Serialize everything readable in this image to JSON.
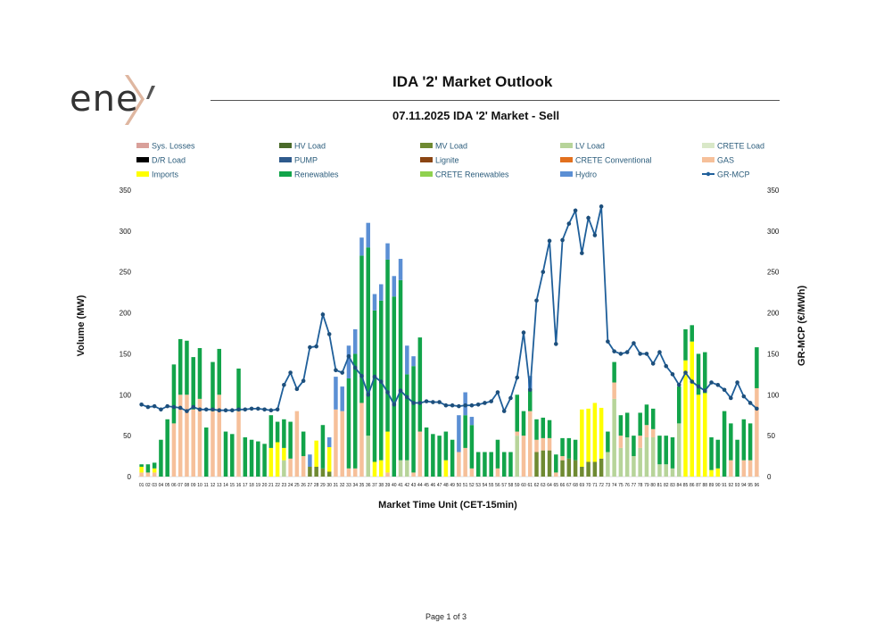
{
  "header": {
    "logo_text": "ene",
    "title": "IDA '2' Market Outlook",
    "subtitle": "07.11.2025  IDA '2' Market - Sell"
  },
  "footer": {
    "page": "Page 1 of 3"
  },
  "chart_data": {
    "type": "bar",
    "stacked": true,
    "xlabel": "Market Time Unit (CET-15min)",
    "ylabel": "Volume (MW)",
    "y2label": "GR-MCP (€/MWh)",
    "ylim": [
      0,
      350
    ],
    "y2lim": [
      0,
      350
    ],
    "yticks": [
      0,
      50,
      100,
      150,
      200,
      250,
      300,
      350
    ],
    "categories": [
      "01",
      "02",
      "03",
      "04",
      "05",
      "06",
      "07",
      "08",
      "09",
      "10",
      "11",
      "12",
      "13",
      "14",
      "15",
      "16",
      "17",
      "18",
      "19",
      "20",
      "21",
      "22",
      "23",
      "24",
      "25",
      "26",
      "27",
      "28",
      "29",
      "30",
      "31",
      "32",
      "33",
      "34",
      "35",
      "36",
      "37",
      "38",
      "39",
      "40",
      "41",
      "42",
      "43",
      "44",
      "45",
      "46",
      "47",
      "48",
      "49",
      "50",
      "51",
      "52",
      "53",
      "54",
      "55",
      "56",
      "57",
      "58",
      "59",
      "60",
      "61",
      "62",
      "63",
      "64",
      "65",
      "66",
      "67",
      "68",
      "69",
      "70",
      "71",
      "72",
      "73",
      "74",
      "75",
      "76",
      "77",
      "78",
      "79",
      "80",
      "81",
      "82",
      "83",
      "84",
      "85",
      "86",
      "87",
      "88",
      "89",
      "90",
      "91",
      "92",
      "93",
      "94",
      "95",
      "96"
    ],
    "legend": [
      {
        "name": "Sys. Losses",
        "color": "#d9a09a",
        "kind": "bar"
      },
      {
        "name": "HV Load",
        "color": "#4a6a2a",
        "kind": "bar"
      },
      {
        "name": "MV Load",
        "color": "#6f8a32",
        "kind": "bar"
      },
      {
        "name": "LV Load",
        "color": "#b7d49a",
        "kind": "bar"
      },
      {
        "name": "CRETE Load",
        "color": "#d9e8c8",
        "kind": "bar"
      },
      {
        "name": "D/R Load",
        "color": "#000000",
        "kind": "bar"
      },
      {
        "name": "PUMP",
        "color": "#2e5a8c",
        "kind": "bar"
      },
      {
        "name": "Lignite",
        "color": "#8b4513",
        "kind": "bar"
      },
      {
        "name": "CRETE Conventional",
        "color": "#e2701e",
        "kind": "bar"
      },
      {
        "name": "GAS",
        "color": "#f6c09a",
        "kind": "bar"
      },
      {
        "name": "Imports",
        "color": "#ffff00",
        "kind": "bar"
      },
      {
        "name": "Renewables",
        "color": "#12a44a",
        "kind": "bar"
      },
      {
        "name": "CRETE Renewables",
        "color": "#8fd14f",
        "kind": "bar"
      },
      {
        "name": "Hydro",
        "color": "#5b8fd4",
        "kind": "bar"
      },
      {
        "name": "GR-MCP",
        "color": "#1f5f9a",
        "kind": "line"
      }
    ],
    "series": [
      {
        "name": "MV Load",
        "values": [
          0,
          0,
          0,
          0,
          0,
          0,
          0,
          0,
          0,
          0,
          0,
          0,
          0,
          0,
          0,
          0,
          0,
          0,
          0,
          0,
          0,
          0,
          0,
          0,
          0,
          0,
          12,
          12,
          10,
          6,
          0,
          0,
          0,
          0,
          0,
          0,
          0,
          0,
          0,
          0,
          0,
          0,
          0,
          0,
          0,
          0,
          0,
          0,
          0,
          0,
          0,
          0,
          0,
          0,
          0,
          0,
          0,
          0,
          0,
          0,
          0,
          30,
          32,
          32,
          0,
          20,
          22,
          20,
          12,
          18,
          18,
          22,
          0,
          0,
          0,
          0,
          0,
          0,
          0,
          0,
          0,
          0,
          0,
          0,
          0,
          0,
          0,
          0,
          0,
          0,
          0,
          0,
          0,
          0,
          0,
          0
        ]
      },
      {
        "name": "LV Load",
        "values": [
          0,
          0,
          0,
          0,
          0,
          0,
          0,
          0,
          0,
          0,
          0,
          0,
          0,
          0,
          0,
          0,
          0,
          0,
          0,
          0,
          0,
          0,
          20,
          0,
          0,
          0,
          0,
          0,
          0,
          0,
          0,
          0,
          0,
          0,
          0,
          50,
          0,
          0,
          0,
          0,
          20,
          20,
          0,
          0,
          0,
          0,
          0,
          0,
          0,
          0,
          0,
          0,
          0,
          0,
          0,
          0,
          0,
          0,
          50,
          0,
          0,
          0,
          0,
          0,
          0,
          0,
          0,
          0,
          0,
          0,
          0,
          0,
          30,
          95,
          35,
          48,
          25,
          35,
          48,
          48,
          15,
          15,
          10,
          65,
          0,
          0,
          0,
          0,
          0,
          0,
          0,
          0,
          0,
          0,
          0,
          0
        ]
      },
      {
        "name": "GAS",
        "values": [
          5,
          5,
          5,
          0,
          0,
          65,
          100,
          100,
          82,
          95,
          0,
          80,
          100,
          0,
          0,
          80,
          0,
          0,
          0,
          0,
          0,
          0,
          0,
          22,
          80,
          25,
          0,
          0,
          0,
          0,
          82,
          80,
          10,
          10,
          90,
          0,
          0,
          0,
          5,
          0,
          0,
          0,
          5,
          55,
          0,
          0,
          0,
          0,
          0,
          30,
          35,
          10,
          0,
          0,
          0,
          10,
          0,
          0,
          5,
          50,
          80,
          15,
          15,
          15,
          5,
          5,
          0,
          0,
          0,
          0,
          0,
          0,
          0,
          20,
          15,
          0,
          0,
          15,
          15,
          10,
          0,
          0,
          0,
          0,
          0,
          0,
          0,
          0,
          0,
          0,
          0,
          20,
          0,
          20,
          20,
          108
        ]
      },
      {
        "name": "Imports",
        "values": [
          7,
          0,
          5,
          0,
          0,
          0,
          0,
          0,
          0,
          0,
          0,
          0,
          0,
          0,
          0,
          0,
          0,
          0,
          0,
          0,
          35,
          42,
          15,
          0,
          0,
          0,
          0,
          32,
          0,
          30,
          0,
          0,
          0,
          0,
          0,
          0,
          18,
          20,
          50,
          0,
          0,
          0,
          0,
          0,
          0,
          0,
          0,
          20,
          0,
          0,
          0,
          0,
          0,
          0,
          0,
          0,
          0,
          0,
          0,
          0,
          0,
          0,
          0,
          0,
          0,
          0,
          0,
          0,
          70,
          65,
          72,
          62,
          0,
          0,
          0,
          0,
          0,
          0,
          0,
          0,
          0,
          0,
          0,
          0,
          142,
          165,
          100,
          102,
          8,
          10,
          0,
          0,
          0,
          0,
          0,
          0
        ]
      },
      {
        "name": "Renewables",
        "values": [
          3,
          10,
          7,
          45,
          70,
          72,
          68,
          66,
          64,
          62,
          60,
          60,
          56,
          55,
          52,
          52,
          48,
          45,
          43,
          40,
          40,
          25,
          35,
          45,
          0,
          30,
          0,
          0,
          53,
          0,
          0,
          0,
          110,
          140,
          180,
          230,
          185,
          195,
          210,
          220,
          220,
          105,
          130,
          115,
          60,
          52,
          50,
          35,
          45,
          0,
          40,
          53,
          30,
          30,
          30,
          35,
          30,
          30,
          45,
          30,
          25,
          25,
          25,
          22,
          22,
          22,
          25,
          25,
          0,
          0,
          0,
          0,
          25,
          25,
          25,
          30,
          25,
          28,
          25,
          25,
          35,
          35,
          38,
          45,
          38,
          20,
          50,
          50,
          40,
          35,
          80,
          45,
          45,
          50,
          45,
          50
        ]
      },
      {
        "name": "Hydro",
        "values": [
          0,
          0,
          0,
          0,
          0,
          0,
          0,
          0,
          0,
          0,
          0,
          0,
          0,
          0,
          0,
          0,
          0,
          0,
          0,
          0,
          0,
          0,
          0,
          0,
          0,
          0,
          15,
          0,
          0,
          12,
          40,
          30,
          40,
          30,
          22,
          30,
          20,
          20,
          20,
          25,
          26,
          35,
          12,
          0,
          0,
          0,
          0,
          0,
          0,
          45,
          28,
          10,
          0,
          0,
          0,
          0,
          0,
          0,
          0,
          0,
          18,
          0,
          0,
          0,
          0,
          0,
          0,
          0,
          0,
          0,
          0,
          0,
          0,
          0,
          0,
          0,
          0,
          0,
          0,
          0,
          0,
          0,
          0,
          0,
          0,
          0,
          0,
          0,
          0,
          0,
          0,
          0,
          0,
          0,
          0,
          0
        ]
      }
    ],
    "line": {
      "name": "GR-MCP",
      "values": [
        88,
        85,
        86,
        82,
        86,
        85,
        84,
        80,
        85,
        82,
        82,
        82,
        81,
        81,
        81,
        82,
        82,
        83,
        83,
        82,
        81,
        82,
        112,
        127,
        107,
        117,
        158,
        159,
        198,
        174,
        130,
        127,
        147,
        133,
        123,
        100,
        122,
        116,
        103,
        88,
        105,
        97,
        90,
        90,
        92,
        91,
        91,
        87,
        87,
        86,
        87,
        87,
        88,
        90,
        92,
        103,
        80,
        96,
        121,
        176,
        106,
        215,
        250,
        288,
        162,
        289,
        309,
        325,
        273,
        316,
        295,
        330,
        165,
        153,
        150,
        152,
        163,
        150,
        150,
        138,
        152,
        135,
        125,
        112,
        127,
        116,
        110,
        105,
        115,
        112,
        106,
        96,
        115,
        98,
        90,
        83
      ]
    }
  }
}
